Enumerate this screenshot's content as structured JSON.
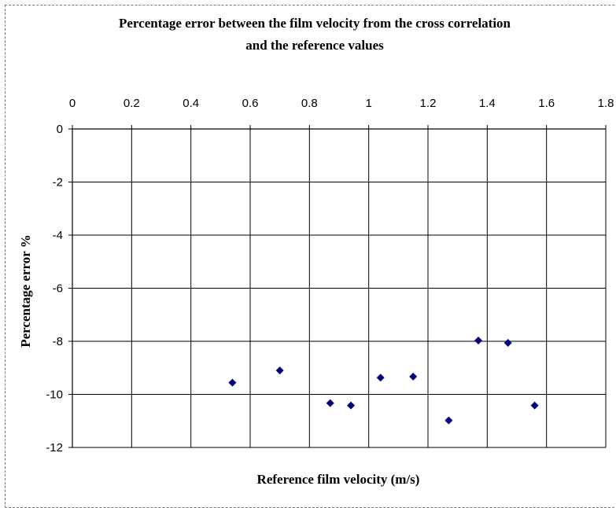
{
  "chart_data": {
    "type": "scatter",
    "title_line1": "Percentage error between the film velocity from the cross correlation",
    "title_line2": "and the reference values",
    "xlabel": "Reference film velocity (m/s)",
    "ylabel": "Percentage error %",
    "xlim": [
      0,
      1.8
    ],
    "ylim": [
      -12,
      0
    ],
    "x_ticks": [
      "0",
      "0.2",
      "0.4",
      "0.6",
      "0.8",
      "1",
      "1.2",
      "1.4",
      "1.6",
      "1.8"
    ],
    "y_ticks": [
      "0",
      "-2",
      "-4",
      "-6",
      "-8",
      "-10",
      "-12"
    ],
    "x_axis_position": "top",
    "grid": true,
    "marker": "diamond",
    "marker_color": "#00007F",
    "x": [
      0.54,
      0.7,
      0.87,
      0.94,
      1.04,
      1.15,
      1.27,
      1.37,
      1.47,
      1.56
    ],
    "y": [
      -9.56,
      -9.1,
      -10.33,
      -10.42,
      -9.37,
      -9.33,
      -10.98,
      -7.97,
      -8.06,
      -10.42
    ]
  }
}
